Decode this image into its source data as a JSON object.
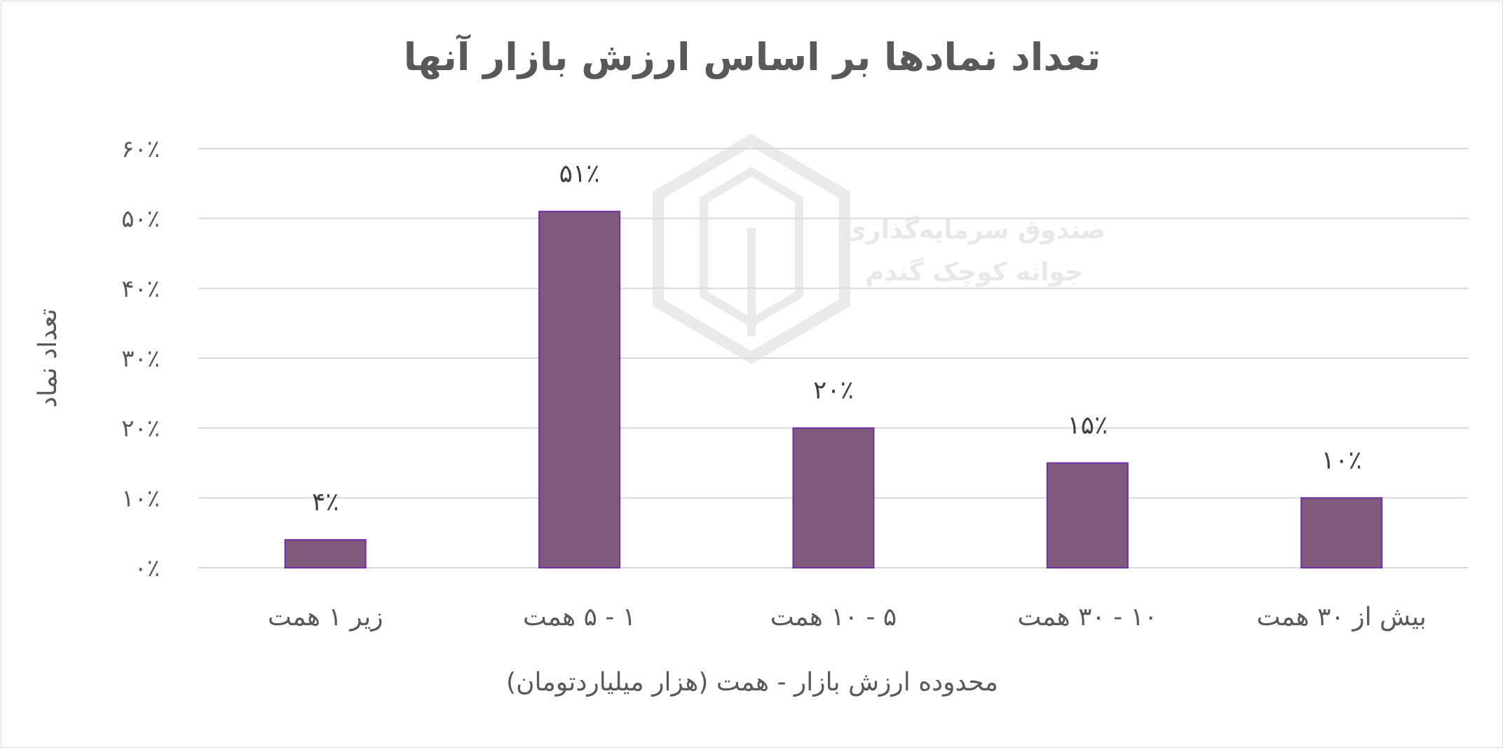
{
  "chart_data": {
    "type": "bar",
    "title": "تعداد نمادها بر اساس ارزش بازار آنها",
    "xlabel": "محدوده ارزش بازار - همت (هزار میلیاردتومان)",
    "ylabel": "تعداد نماد",
    "categories": [
      "زیر ۱ همت",
      "۱ - ۵ همت",
      "۵ - ۱۰ همت",
      "۱۰ - ۳۰ همت",
      "بیش از ۳۰ همت"
    ],
    "values": [
      4,
      51,
      20,
      15,
      10
    ],
    "data_labels": [
      "۴٪",
      "۵۱٪",
      "۲۰٪",
      "۱۵٪",
      "۱۰٪"
    ],
    "ylim": [
      0,
      60
    ],
    "yticks": [
      0,
      10,
      20,
      30,
      40,
      50,
      60
    ],
    "ytick_labels": [
      "۰٪",
      "۱۰٪",
      "۲۰٪",
      "۳۰٪",
      "۴۰٪",
      "۵۰٪",
      "۶۰٪"
    ],
    "grid": true,
    "legend": "none",
    "colors": {
      "bar_fill": "#7f5a7c",
      "bar_edge": "#7030a0",
      "grid": "#d9d9d9",
      "text": "#595959"
    }
  },
  "watermark": {
    "line1": "صندوق سرمایه‌گذاری",
    "line2": "جوانه کوچک گندم"
  }
}
